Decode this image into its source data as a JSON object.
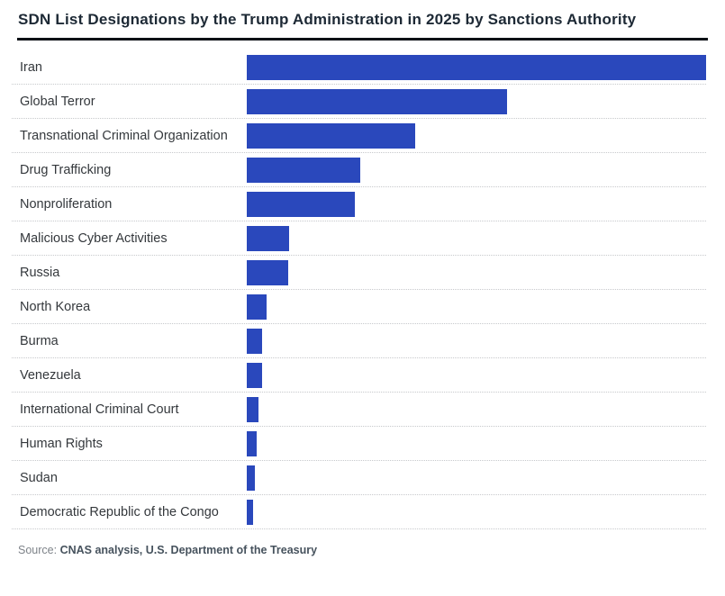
{
  "header": {
    "title": "SDN List Designations by the Trump Administration in 2025 by Sanctions Authority"
  },
  "footer": {
    "source_label": "Source:",
    "source_text": "CNAS analysis, U.S. Department of the Treasury"
  },
  "colors": {
    "bar": "#2a48bc",
    "title_text": "#1d2935",
    "label_text": "#34383c",
    "rule": "#0d1116",
    "separator": "#c7c9cc",
    "source_label_text": "#7e8389",
    "source_bold_text": "#46525d"
  },
  "chart_data": {
    "type": "bar",
    "orientation": "horizontal",
    "title": "SDN List Designations by the Trump Administration in 2025 by Sanctions Authority",
    "xlabel": "",
    "ylabel": "",
    "legend": false,
    "grid": false,
    "value_axis_shown": false,
    "value_unit": "relative bar length in pixels (chart shows no numeric axis or data labels; values estimated from bar lengths, max = 510)",
    "xlim": [
      0,
      510
    ],
    "categories": [
      "Iran",
      "Global Terror",
      "Transnational Criminal Organization",
      "Drug Trafficking",
      "Nonproliferation",
      "Malicious Cyber Activities",
      "Russia",
      "North Korea",
      "Burma",
      "Venezuela",
      "International Criminal Court",
      "Human Rights",
      "Sudan",
      "Democratic Republic of the Congo"
    ],
    "values": [
      510,
      289,
      187,
      126,
      120,
      47,
      46,
      22,
      17,
      16.5,
      13,
      11,
      9,
      7
    ]
  }
}
